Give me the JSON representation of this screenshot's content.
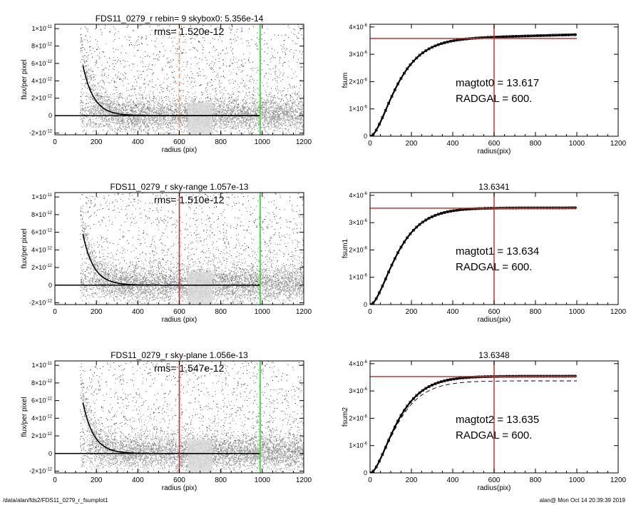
{
  "footer": {
    "path": "/data/alan/fds2/FDS11_0279_r_fsumplot1",
    "user_time": "alan@  Mon Oct 14 20:39:39 2019"
  },
  "chart_data": [
    {
      "type": "scatter",
      "title": "FDS11_0279_r rebin= 9    skybox0:  5.356e-14",
      "rms_label": "rms= 1.520e-12",
      "xlabel": "radius (pix)",
      "ylabel": "flux/per pixel",
      "xlim": [
        0,
        1200
      ],
      "ylim": [
        -2.2e-12,
        1.05e-11
      ],
      "xticks": [
        "0",
        "200",
        "400",
        "600",
        "800",
        "1000",
        "1200"
      ],
      "yticks": [
        {
          "value": 1e-11,
          "mant": "1×10",
          "exp": "-11"
        },
        {
          "value": 8e-12,
          "mant": "8×10",
          "exp": "-12"
        },
        {
          "value": 6e-12,
          "mant": "6×10",
          "exp": "-12"
        },
        {
          "value": 4e-12,
          "mant": "4×10",
          "exp": "-12"
        },
        {
          "value": 2e-12,
          "mant": "2×10",
          "exp": "-12"
        },
        {
          "value": 0,
          "mant": "0",
          "exp": ""
        },
        {
          "value": -2e-12,
          "mant": "-2×10",
          "exp": "-12"
        }
      ],
      "vlines": [
        {
          "x": 600,
          "color": "#f0a050",
          "dashed": true
        },
        {
          "x": 990,
          "color": "#30d030",
          "dashed": false
        }
      ],
      "profile_scale": 1.25e-11,
      "profile_tau": 52,
      "profile_start": 135,
      "profile_end": 990,
      "zero_line": true,
      "scatter_color": "#9a9a9a",
      "point_color": "#000000"
    },
    {
      "type": "line",
      "title": "",
      "xlabel": "radius(pix)",
      "ylabel": "fsum",
      "xlim": [
        0,
        1200
      ],
      "ylim": [
        0,
        4.1e-06
      ],
      "xticks": [
        "0",
        "200",
        "400",
        "600",
        "800",
        "1000",
        "1200"
      ],
      "yticks": [
        {
          "value": 4e-06,
          "mant": "4×10",
          "exp": "-6"
        },
        {
          "value": 3e-06,
          "mant": "3×10",
          "exp": "-6"
        },
        {
          "value": 2e-06,
          "mant": "2×10",
          "exp": "-6"
        },
        {
          "value": 1e-06,
          "mant": "1×10",
          "exp": "-6"
        },
        {
          "value": 0,
          "mant": "0",
          "exp": ""
        }
      ],
      "asymptote": 3.52e-06,
      "slope": 2e-10,
      "tau": 75,
      "xmax": 1000,
      "hline": 3.58e-06,
      "hline_range": [
        0,
        1000
      ],
      "vline": 600,
      "dashed_curve": false,
      "annotation": [
        "magtot0 = 13.617",
        "RADGAL =    600."
      ]
    },
    {
      "type": "scatter",
      "title": "FDS11_0279_r sky-range  1.057e-13",
      "rms_label": "rms= 1.510e-12",
      "xlabel": "radius (pix)",
      "ylabel": "flux/per pixel",
      "xlim": [
        0,
        1200
      ],
      "ylim": [
        -2.2e-12,
        1.05e-11
      ],
      "xticks": [
        "0",
        "200",
        "400",
        "600",
        "800",
        "1000",
        "1200"
      ],
      "yticks": [
        {
          "value": 1e-11,
          "mant": "1×10",
          "exp": "-11"
        },
        {
          "value": 8e-12,
          "mant": "8×10",
          "exp": "-12"
        },
        {
          "value": 6e-12,
          "mant": "6×10",
          "exp": "-12"
        },
        {
          "value": 4e-12,
          "mant": "4×10",
          "exp": "-12"
        },
        {
          "value": 2e-12,
          "mant": "2×10",
          "exp": "-12"
        },
        {
          "value": 0,
          "mant": "0",
          "exp": ""
        },
        {
          "value": -2e-12,
          "mant": "-2×10",
          "exp": "-12"
        }
      ],
      "vlines": [
        {
          "x": 600,
          "color": "#d03030",
          "dashed": false
        },
        {
          "x": 990,
          "color": "#30d030",
          "dashed": false
        }
      ],
      "profile_scale": 1.25e-11,
      "profile_tau": 52,
      "profile_start": 135,
      "profile_end": 990,
      "zero_line": true,
      "scatter_color": "#9a9a9a",
      "point_color": "#000000"
    },
    {
      "type": "line",
      "title": "13.6341",
      "xlabel": "radius(pix)",
      "ylabel": "fsum1",
      "xlim": [
        0,
        1200
      ],
      "ylim": [
        0,
        4.1e-06
      ],
      "xticks": [
        "0",
        "200",
        "400",
        "600",
        "800",
        "1000",
        "1200"
      ],
      "yticks": [
        {
          "value": 4e-06,
          "mant": "4×10",
          "exp": "-6"
        },
        {
          "value": 3e-06,
          "mant": "3×10",
          "exp": "-6"
        },
        {
          "value": 2e-06,
          "mant": "2×10",
          "exp": "-6"
        },
        {
          "value": 1e-06,
          "mant": "1×10",
          "exp": "-6"
        },
        {
          "value": 0,
          "mant": "0",
          "exp": ""
        }
      ],
      "asymptote": 3.54e-06,
      "slope": 0,
      "tau": 75,
      "xmax": 1000,
      "hline": 3.53e-06,
      "hline_range": [
        0,
        1000
      ],
      "vline": 600,
      "dashed_curve": false,
      "annotation": [
        "magtot1 = 13.634",
        "RADGAL =    600."
      ]
    },
    {
      "type": "scatter",
      "title": "FDS11_0279_r sky-plane  1.056e-13",
      "rms_label": "rms= 1.547e-12",
      "xlabel": "radius (pix)",
      "ylabel": "flux/per pixel",
      "xlim": [
        0,
        1200
      ],
      "ylim": [
        -2.2e-12,
        1.05e-11
      ],
      "xticks": [
        "0",
        "200",
        "400",
        "600",
        "800",
        "1000",
        "1200"
      ],
      "yticks": [
        {
          "value": 1e-11,
          "mant": "1×10",
          "exp": "-11"
        },
        {
          "value": 8e-12,
          "mant": "8×10",
          "exp": "-12"
        },
        {
          "value": 6e-12,
          "mant": "6×10",
          "exp": "-12"
        },
        {
          "value": 4e-12,
          "mant": "4×10",
          "exp": "-12"
        },
        {
          "value": 2e-12,
          "mant": "2×10",
          "exp": "-12"
        },
        {
          "value": 0,
          "mant": "0",
          "exp": ""
        },
        {
          "value": -2e-12,
          "mant": "-2×10",
          "exp": "-12"
        }
      ],
      "vlines": [
        {
          "x": 600,
          "color": "#d03030",
          "dashed": false
        },
        {
          "x": 990,
          "color": "#30d030",
          "dashed": false
        }
      ],
      "profile_scale": 1.25e-11,
      "profile_tau": 52,
      "profile_start": 135,
      "profile_end": 990,
      "zero_line": true,
      "scatter_color": "#9a9a9a",
      "point_color": "#000000"
    },
    {
      "type": "line",
      "title": "13.6348",
      "xlabel": "radius(pix)",
      "ylabel": "fsum2",
      "xlim": [
        0,
        1200
      ],
      "ylim": [
        0,
        4.1e-06
      ],
      "xticks": [
        "0",
        "200",
        "400",
        "600",
        "800",
        "1000",
        "1200"
      ],
      "yticks": [
        {
          "value": 4e-06,
          "mant": "4×10",
          "exp": "-6"
        },
        {
          "value": 3e-06,
          "mant": "3×10",
          "exp": "-6"
        },
        {
          "value": 2e-06,
          "mant": "2×10",
          "exp": "-6"
        },
        {
          "value": 1e-06,
          "mant": "1×10",
          "exp": "-6"
        },
        {
          "value": 0,
          "mant": "0",
          "exp": ""
        }
      ],
      "asymptote": 3.54e-06,
      "slope": 0,
      "tau": 75,
      "xmax": 1000,
      "hline": 3.53e-06,
      "hline_range": [
        0,
        1000
      ],
      "vline": 600,
      "dashed_curve": true,
      "dashed_asymptote": 3.37e-06,
      "annotation": [
        "magtot2 = 13.635",
        "RADGAL =    600."
      ]
    }
  ]
}
